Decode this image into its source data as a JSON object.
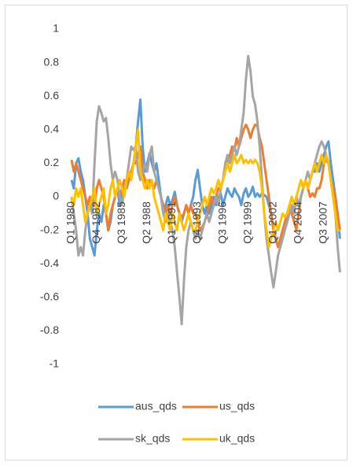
{
  "chart_data": {
    "type": "line",
    "categories": [
      "Q1 1980",
      null,
      null,
      null,
      null,
      null,
      null,
      null,
      null,
      null,
      null,
      "Q4 1982",
      null,
      null,
      null,
      null,
      null,
      null,
      null,
      null,
      null,
      null,
      "Q3 1985",
      null,
      null,
      null,
      null,
      null,
      null,
      null,
      null,
      null,
      null,
      "Q2 1988",
      null,
      null,
      null,
      null,
      null,
      null,
      null,
      null,
      null,
      null,
      "Q1 1991",
      null,
      null,
      null,
      null,
      null,
      null,
      null,
      null,
      null,
      null,
      "Q4 1993",
      null,
      null,
      null,
      null,
      null,
      null,
      null,
      null,
      null,
      null,
      "Q3 1996",
      null,
      null,
      null,
      null,
      null,
      null,
      null,
      null,
      null,
      null,
      "Q2 1999",
      null,
      null,
      null,
      null,
      null,
      null,
      null,
      null,
      null,
      null,
      "Q1 2002",
      null,
      null,
      null,
      null,
      null,
      null,
      null,
      null,
      null,
      null,
      "Q4 2004",
      null,
      null,
      null,
      null,
      null,
      null,
      null,
      null,
      null,
      null,
      "Q3 2007",
      null,
      null,
      null,
      null,
      null,
      null,
      null
    ],
    "series": [
      {
        "name": "aus_qds",
        "color": "#5b9bd5",
        "values": [
          0.1,
          0.05,
          0.2,
          0.23,
          0.15,
          0.1,
          0,
          -0.1,
          -0.25,
          -0.3,
          -0.35,
          -0.2,
          -0.1,
          -0.15,
          -0.05,
          -0.1,
          -0.2,
          -0.15,
          -0.05,
          0,
          0.05,
          -0.05,
          0,
          0.1,
          0.05,
          0.1,
          0.15,
          0.2,
          0.3,
          0.45,
          0.58,
          0.3,
          0.15,
          0.2,
          0.26,
          0.2,
          0.15,
          0.2,
          0.1,
          0,
          -0.1,
          -0.05,
          0,
          -0.05,
          -0.02,
          0.03,
          -0.05,
          -0.1,
          -0.15,
          -0.1,
          -0.05,
          -0.1,
          -0.05,
          0,
          0.1,
          0.16,
          0.05,
          -0.05,
          -0.1,
          -0.05,
          -0.1,
          -0.05,
          0,
          -0.05,
          0,
          0.02,
          -0.05,
          0,
          0.05,
          0.02,
          0,
          0.05,
          0.02,
          0,
          -0.05,
          0.02,
          0.05,
          0,
          0.02,
          0.06,
          0,
          0.02,
          0,
          0.02,
          0.01,
          0,
          -0.05,
          -0.1,
          -0.2,
          -0.25,
          -0.3,
          -0.25,
          -0.2,
          -0.15,
          -0.1,
          -0.05,
          -0.1,
          -0.05,
          0,
          -0.05,
          0,
          0.05,
          0.1,
          0.05,
          0.1,
          0.15,
          0.15,
          0.2,
          0.15,
          0.2,
          0.25,
          0.3,
          0.33,
          0.2,
          0.1,
          0,
          -0.1,
          -0.25
        ]
      },
      {
        "name": "us_qds",
        "color": "#ed7d31",
        "values": [
          0.22,
          0.15,
          0.2,
          0.15,
          0.1,
          0.05,
          0,
          -0.05,
          0,
          -0.05,
          -0.05,
          0.05,
          0.1,
          0.05,
          0,
          -0.1,
          -0.2,
          -0.1,
          -0.05,
          0,
          0.05,
          0,
          0.05,
          0.1,
          0.05,
          0.1,
          0.15,
          0.2,
          0.2,
          0.25,
          0.3,
          0.15,
          0.1,
          0.05,
          0.1,
          0.08,
          0.05,
          0.1,
          0.05,
          0,
          -0.05,
          -0.1,
          -0.05,
          -0.1,
          -0.05,
          0,
          -0.05,
          -0.1,
          -0.12,
          -0.1,
          -0.05,
          -0.1,
          -0.05,
          -0.1,
          -0.1,
          -0.15,
          -0.2,
          -0.18,
          -0.15,
          -0.1,
          -0.05,
          0,
          -0.05,
          0,
          0.05,
          0.05,
          0.1,
          0.15,
          0.2,
          0.25,
          0.3,
          0.28,
          0.35,
          0.3,
          0.35,
          0.4,
          0.43,
          0.4,
          0.35,
          0.4,
          0.43,
          0.42,
          0.35,
          0.3,
          0.2,
          0.1,
          0,
          -0.1,
          -0.2,
          -0.25,
          -0.3,
          -0.25,
          -0.2,
          -0.15,
          -0.1,
          -0.05,
          -0.1,
          -0.15,
          -0.2,
          -0.1,
          0,
          0.05,
          0.1,
          0.05,
          0,
          0.02,
          0,
          0.05,
          0.05,
          0.1,
          0.2,
          0.22,
          0.2,
          0.1,
          0.05,
          0,
          -0.1,
          -0.2
        ]
      },
      {
        "name": "sk_qds",
        "color": "#a5a5a5",
        "values": [
          0,
          -0.1,
          -0.2,
          -0.35,
          -0.3,
          -0.35,
          -0.2,
          -0.1,
          -0.05,
          -0.1,
          0.2,
          0.45,
          0.54,
          0.5,
          0.45,
          0.47,
          0.35,
          0.2,
          0.1,
          0.15,
          0.1,
          0,
          -0.05,
          0.05,
          0.1,
          0.2,
          0.3,
          0.28,
          0.3,
          0.15,
          0.1,
          0.15,
          0.2,
          0.15,
          0.25,
          0.3,
          0.15,
          0.1,
          0.05,
          0,
          -0.1,
          -0.15,
          -0.1,
          -0.15,
          -0.2,
          -0.3,
          -0.45,
          -0.6,
          -0.76,
          -0.5,
          -0.3,
          -0.2,
          -0.15,
          -0.2,
          -0.25,
          -0.2,
          -0.25,
          -0.2,
          -0.15,
          -0.1,
          -0.15,
          -0.1,
          -0.05,
          0,
          -0.05,
          0.05,
          0.1,
          0.2,
          0.25,
          0.2,
          0.25,
          0.3,
          0.25,
          0.3,
          0.4,
          0.5,
          0.7,
          0.84,
          0.75,
          0.6,
          0.55,
          0.45,
          0.3,
          0.1,
          -0.1,
          -0.25,
          -0.35,
          -0.45,
          -0.54,
          -0.45,
          -0.35,
          -0.3,
          -0.25,
          -0.2,
          -0.15,
          -0.1,
          -0.05,
          -0.1,
          0,
          -0.05,
          0,
          0.05,
          0.1,
          0.15,
          0.1,
          0.15,
          0.2,
          0.25,
          0.3,
          0.33,
          0.3,
          0.25,
          0.2,
          0.1,
          0,
          -0.1,
          -0.3,
          -0.45
        ]
      },
      {
        "name": "uk_qds",
        "color": "#ffc000",
        "values": [
          0,
          -0.05,
          0.05,
          0,
          0.05,
          -0.05,
          -0.15,
          -0.1,
          -0.05,
          0,
          0.05,
          -0.1,
          -0.05,
          0,
          0.05,
          -0.1,
          -0.05,
          0.05,
          0.1,
          0,
          0.05,
          0.1,
          0.05,
          0,
          0.1,
          0.15,
          0.1,
          0.2,
          0.3,
          0.4,
          0.15,
          0.1,
          0.05,
          0.1,
          0.05,
          0.1,
          0,
          -0.05,
          -0.1,
          -0.15,
          -0.2,
          -0.1,
          -0.15,
          -0.2,
          -0.1,
          -0.15,
          -0.2,
          -0.1,
          -0.15,
          -0.2,
          -0.15,
          -0.1,
          -0.15,
          -0.2,
          -0.2,
          -0.15,
          -0.1,
          -0.05,
          0,
          -0.05,
          0,
          0.05,
          0.02,
          0.05,
          0.1,
          0.05,
          0.1,
          0.15,
          0.2,
          0.15,
          0.2,
          0.25,
          0.2,
          0.22,
          0.25,
          0.2,
          0.22,
          0.2,
          0.22,
          0.2,
          0.22,
          0.2,
          0.15,
          0.05,
          -0.1,
          -0.2,
          -0.3,
          -0.25,
          -0.2,
          -0.15,
          -0.2,
          -0.15,
          -0.1,
          -0.12,
          -0.1,
          -0.05,
          0,
          -0.05,
          0,
          0.05,
          0.1,
          0.05,
          0.1,
          0.05,
          0.1,
          0.15,
          0.2,
          0.15,
          0.2,
          0.25,
          0.2,
          0.25,
          0.2,
          0.1,
          0,
          -0.1,
          -0.2,
          -0.2
        ]
      }
    ],
    "ylim": [
      -1,
      1
    ],
    "yticks": [
      1,
      0.8,
      0.6,
      0.4,
      0.2,
      0,
      -0.2,
      -0.4,
      -0.6,
      -0.8,
      -1
    ],
    "grid": false,
    "legend": "bottom"
  }
}
